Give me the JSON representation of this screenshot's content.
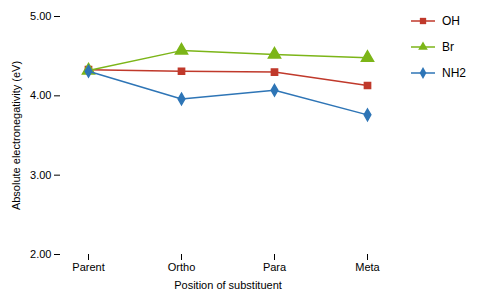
{
  "chart_data": {
    "type": "line",
    "xlabel": "Position of substituent",
    "ylabel": "Absolute electronegativity (eV)",
    "categories": [
      "Parent",
      "Ortho",
      "Para",
      "Meta"
    ],
    "series": [
      {
        "name": "OH",
        "color": "#C0392B",
        "marker": "square",
        "values": [
          4.33,
          4.31,
          4.3,
          4.13
        ]
      },
      {
        "name": "Br",
        "color": "#7CB518",
        "marker": "triangle",
        "values": [
          4.32,
          4.57,
          4.52,
          4.48
        ]
      },
      {
        "name": "NH2",
        "color": "#2E75B6",
        "marker": "diamond",
        "values": [
          4.31,
          3.96,
          4.07,
          3.76
        ]
      }
    ],
    "ylim": [
      2.0,
      5.0
    ],
    "yticks": [
      {
        "value": 2,
        "label": "2.00"
      },
      {
        "value": 3,
        "label": "3.00"
      },
      {
        "value": 4,
        "label": "4.00"
      },
      {
        "value": 5,
        "label": "5.00"
      }
    ],
    "grid": false,
    "legend": "right"
  }
}
